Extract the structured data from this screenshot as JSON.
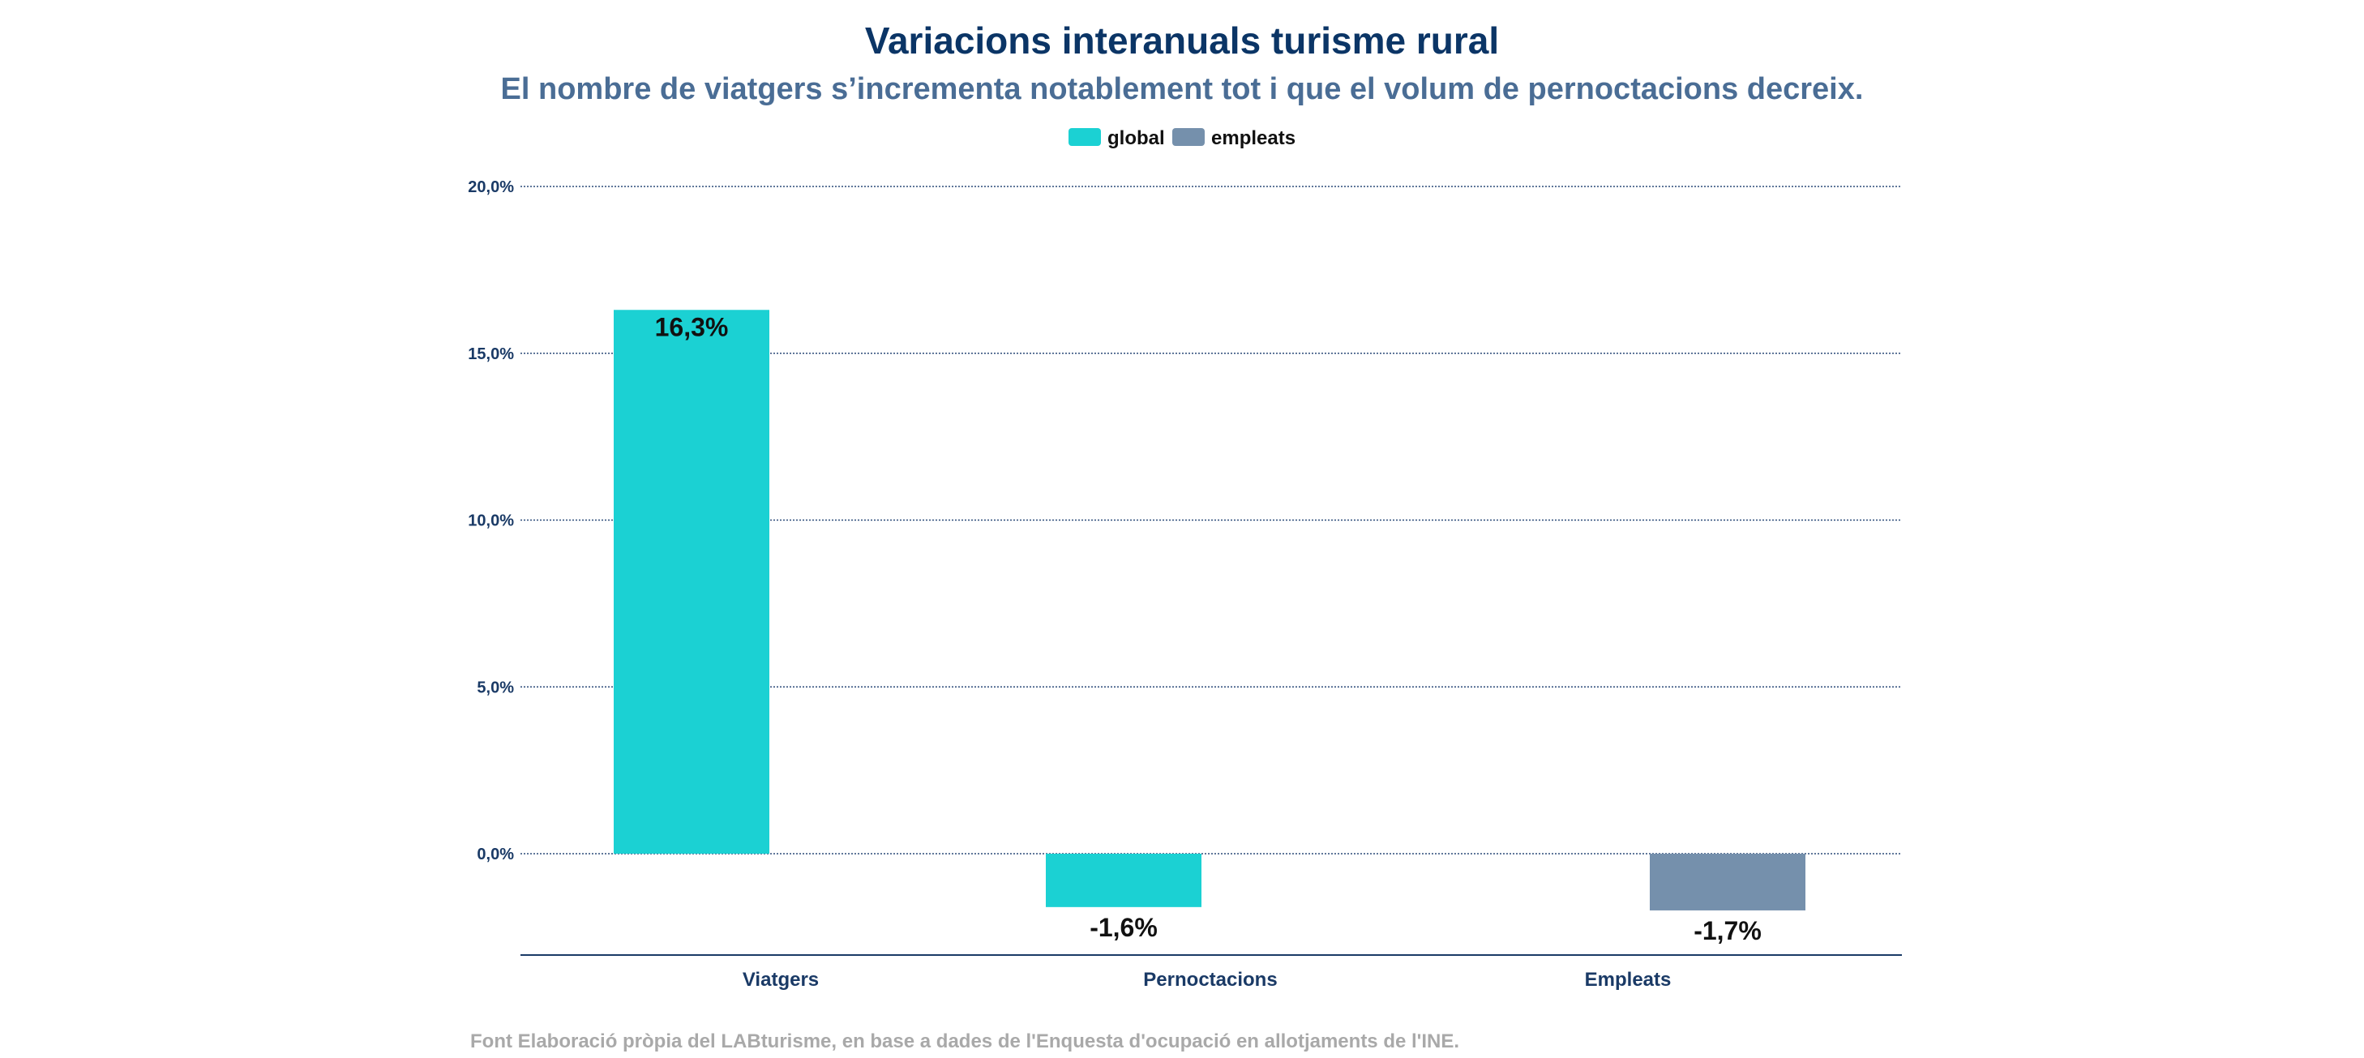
{
  "chart_data": {
    "type": "bar",
    "title": "Variacions interanuals turisme rural",
    "subtitle": "El nombre de viatgers s’incrementa notablement tot i que el volum de pernoctacions decreix.",
    "categories": [
      "Viatgers",
      "Pernoctacions",
      "Empleats"
    ],
    "series": [
      {
        "name": "global",
        "color": "#1bd1d3",
        "values": [
          16.3,
          -1.6,
          null
        ]
      },
      {
        "name": "empleats",
        "color": "#7590ac",
        "values": [
          null,
          null,
          -1.7
        ]
      }
    ],
    "data_labels": [
      "16,3%",
      "-1,6%",
      "-1,7%"
    ],
    "y_ticks": [
      0,
      5,
      10,
      15,
      20
    ],
    "y_tick_labels": [
      "0,0%",
      "5,0%",
      "10,0%",
      "15,0%",
      "20,0%"
    ],
    "ylim": [
      -3,
      20
    ],
    "grid": true,
    "legend_position": "top-center",
    "source_note": "Font Elaboració pròpia del LABturisme, en base a dades de l'Enquesta d'ocupació en allotjaments de l'INE."
  },
  "colors": {
    "title": "#0b3566",
    "subtitle": "#4a6d95",
    "axis": "#1a3a66",
    "grid": "#2b4a78",
    "source": "#a9a9a9",
    "label": "#111111"
  }
}
